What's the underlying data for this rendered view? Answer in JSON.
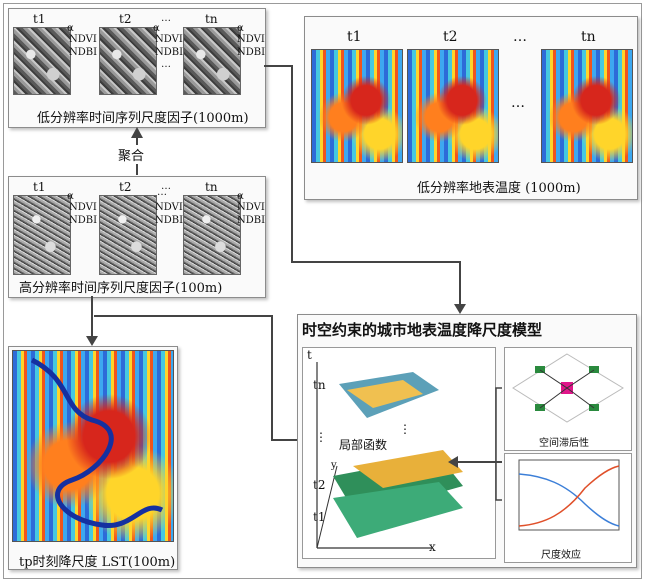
{
  "time_labels": {
    "t1": "t1",
    "t2": "t2",
    "tn": "tn",
    "tp_caption": "tp时刻降尺度 LST(100m)"
  },
  "ellipsis": "…",
  "vdots": "⋮",
  "factor_labels": {
    "alpha": "α",
    "ndvi": "NDVI",
    "ndbi": "NDBI"
  },
  "panels": {
    "low_res_factors": "低分辨率时间序列尺度因子(1000m)",
    "aggregation": "聚合",
    "high_res_factors": "高分辨率时间序列尺度因子(100m)",
    "low_res_lst": "低分辨率地表温度 (1000m)",
    "model_title": "时空约束的城市地表温度降尺度模型",
    "local_function": "局部函数",
    "spatial_lag": "空间滞后性",
    "scale_effect": "尺度效应"
  },
  "axes": {
    "t": "t",
    "y": "y",
    "x": "x"
  }
}
